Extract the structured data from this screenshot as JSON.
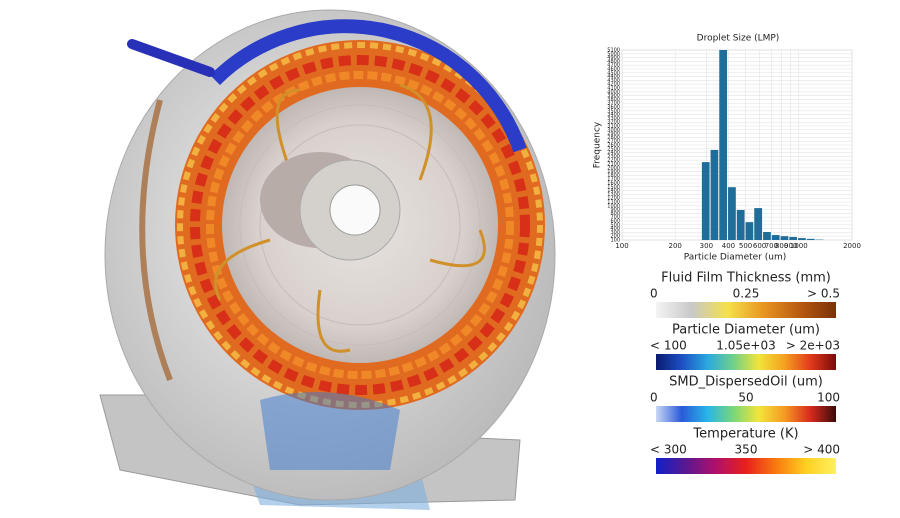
{
  "chart_data": {
    "type": "histogram",
    "title": "Droplet Size (LMP)",
    "x_label": "Particle Diameter (um)",
    "y_label": "Frequency",
    "bins": [
      283,
      317,
      355,
      398,
      446,
      500,
      560,
      628,
      704,
      789,
      884,
      990,
      1110,
      1244,
      1394
    ],
    "counts": [
      2150,
      2470,
      5100,
      1490,
      890,
      570,
      940,
      310,
      230,
      200,
      180,
      150,
      130,
      110
    ],
    "color": "#1f6e99",
    "xscale": "log",
    "xlim": [
      100,
      2000
    ],
    "ylim": [
      100,
      5100
    ],
    "grid": true,
    "xticks": [
      100,
      200,
      300,
      400,
      500,
      600,
      700,
      800,
      900,
      1000,
      2000
    ],
    "yticks": [
      100,
      200,
      300,
      400,
      500,
      600,
      700,
      800,
      900,
      1000,
      1100,
      1200,
      1300,
      1400,
      1500,
      1600,
      1700,
      1800,
      1900,
      2000,
      2100,
      2200,
      2300,
      2400,
      2500,
      2600,
      2700,
      2800,
      2900,
      3000,
      3100,
      3200,
      3300,
      3400,
      3500,
      3600,
      3700,
      3800,
      3900,
      4000,
      4100,
      4200,
      4300,
      4400,
      4500,
      4600,
      4700,
      4800,
      4900,
      5000,
      5100
    ]
  },
  "colorbars": [
    {
      "title": "Fluid Film Thickness (mm)",
      "labels": [
        "0",
        "0.25",
        "> 0.5"
      ],
      "colors": [
        "#f4f4f4",
        "#c8c8c8",
        "#f5e04a",
        "#e89420",
        "#b85a10",
        "#7a3208"
      ]
    },
    {
      "title": "Particle Diameter (um)",
      "labels": [
        "< 100",
        "1.05e+03",
        "> 2e+03"
      ],
      "colors": [
        "#0a1a6e",
        "#1d4fc4",
        "#2aa8e0",
        "#6fd08a",
        "#f2e43a",
        "#f5a020",
        "#e23a1c",
        "#7a0a0a"
      ]
    },
    {
      "title": "SMD_DispersedOil (um)",
      "labels": [
        "0",
        "50",
        "100"
      ],
      "colors": [
        "#c9d8f5",
        "#2a5ad8",
        "#28b5e8",
        "#78d67a",
        "#f3e53a",
        "#f59a22",
        "#d82a1e",
        "#3a0a0a"
      ]
    },
    {
      "title": "Temperature (K)",
      "labels": [
        "< 300",
        "350",
        "> 400"
      ],
      "colors": [
        "#1020c8",
        "#5a1890",
        "#b0106a",
        "#e8201c",
        "#f87a10",
        "#ffd020",
        "#fff060"
      ]
    }
  ]
}
